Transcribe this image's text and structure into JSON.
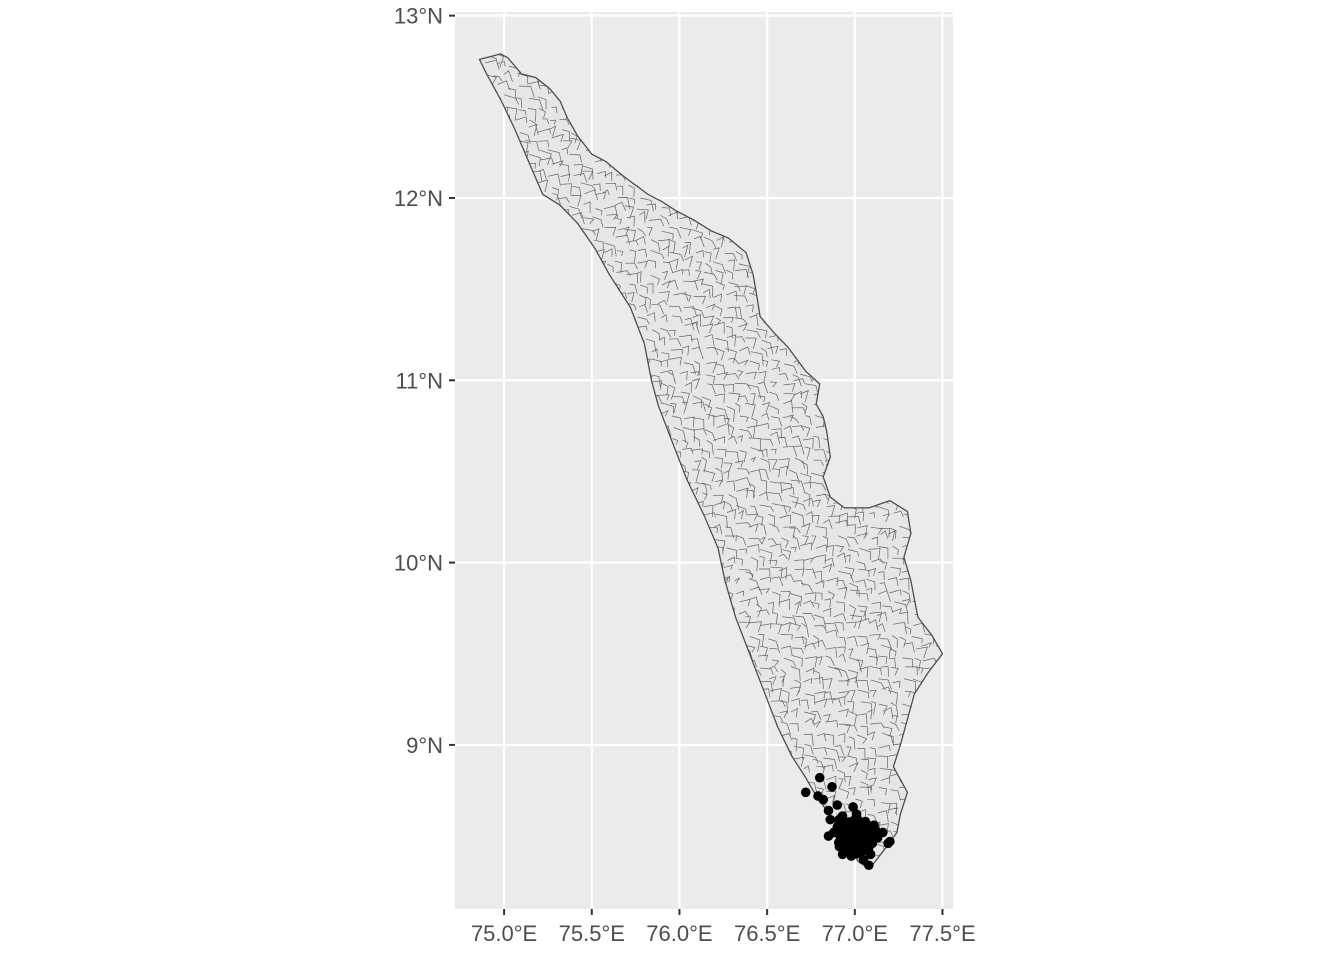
{
  "map": {
    "colors": {
      "panel_background": "#ebebeb",
      "grid": "#ffffff",
      "land_fill": "#e6e6e6",
      "border": "#4d4d4d",
      "points": "#000000",
      "axis_text": "#4d4d4d"
    },
    "grid": true,
    "lon_range": [
      74.72,
      77.56
    ],
    "lat_range": [
      8.1,
      13.02
    ],
    "x_ticks": [
      {
        "value": 75.0,
        "label": "75.0°E"
      },
      {
        "value": 75.5,
        "label": "75.5°E"
      },
      {
        "value": 76.0,
        "label": "76.0°E"
      },
      {
        "value": 76.5,
        "label": "76.5°E"
      },
      {
        "value": 77.0,
        "label": "77.0°E"
      },
      {
        "value": 77.5,
        "label": "77.5°E"
      }
    ],
    "y_ticks": [
      {
        "value": 9,
        "label": "9°N"
      },
      {
        "value": 10,
        "label": "10°N"
      },
      {
        "value": 11,
        "label": "11°N"
      },
      {
        "value": 12,
        "label": "12°N"
      },
      {
        "value": 13,
        "label": "13°N"
      }
    ],
    "outline": [
      [
        74.86,
        12.76
      ],
      [
        74.98,
        12.79
      ],
      [
        75.02,
        12.77
      ],
      [
        75.1,
        12.68
      ],
      [
        75.18,
        12.66
      ],
      [
        75.26,
        12.6
      ],
      [
        75.32,
        12.53
      ],
      [
        75.36,
        12.44
      ],
      [
        75.42,
        12.34
      ],
      [
        75.5,
        12.24
      ],
      [
        75.58,
        12.2
      ],
      [
        75.68,
        12.12
      ],
      [
        75.82,
        12.02
      ],
      [
        75.9,
        11.98
      ],
      [
        75.98,
        11.93
      ],
      [
        76.08,
        11.88
      ],
      [
        76.18,
        11.82
      ],
      [
        76.28,
        11.78
      ],
      [
        76.38,
        11.7
      ],
      [
        76.42,
        11.58
      ],
      [
        76.44,
        11.47
      ],
      [
        76.46,
        11.35
      ],
      [
        76.54,
        11.26
      ],
      [
        76.62,
        11.18
      ],
      [
        76.72,
        11.05
      ],
      [
        76.8,
        10.98
      ],
      [
        76.78,
        10.87
      ],
      [
        76.82,
        10.8
      ],
      [
        76.84,
        10.72
      ],
      [
        76.86,
        10.58
      ],
      [
        76.82,
        10.47
      ],
      [
        76.86,
        10.36
      ],
      [
        76.94,
        10.3
      ],
      [
        77.08,
        10.3
      ],
      [
        77.2,
        10.34
      ],
      [
        77.3,
        10.28
      ],
      [
        77.32,
        10.16
      ],
      [
        77.28,
        10.03
      ],
      [
        77.32,
        9.9
      ],
      [
        77.36,
        9.7
      ],
      [
        77.44,
        9.6
      ],
      [
        77.5,
        9.5
      ],
      [
        77.42,
        9.4
      ],
      [
        77.34,
        9.28
      ],
      [
        77.3,
        9.14
      ],
      [
        77.26,
        9.0
      ],
      [
        77.22,
        8.88
      ],
      [
        77.3,
        8.74
      ],
      [
        77.26,
        8.62
      ],
      [
        77.24,
        8.52
      ],
      [
        77.18,
        8.44
      ],
      [
        77.1,
        8.34
      ],
      [
        77.08,
        8.32
      ],
      [
        77.02,
        8.36
      ],
      [
        76.96,
        8.45
      ],
      [
        76.9,
        8.55
      ],
      [
        76.84,
        8.64
      ],
      [
        76.78,
        8.72
      ],
      [
        76.72,
        8.82
      ],
      [
        76.64,
        8.94
      ],
      [
        76.56,
        9.1
      ],
      [
        76.48,
        9.3
      ],
      [
        76.4,
        9.5
      ],
      [
        76.32,
        9.7
      ],
      [
        76.26,
        9.9
      ],
      [
        76.22,
        10.08
      ],
      [
        76.14,
        10.26
      ],
      [
        76.04,
        10.46
      ],
      [
        75.96,
        10.66
      ],
      [
        75.88,
        10.86
      ],
      [
        75.84,
        11.0
      ],
      [
        75.8,
        11.2
      ],
      [
        75.72,
        11.4
      ],
      [
        75.6,
        11.58
      ],
      [
        75.52,
        11.72
      ],
      [
        75.42,
        11.86
      ],
      [
        75.32,
        11.96
      ],
      [
        75.22,
        12.02
      ],
      [
        75.14,
        12.2
      ],
      [
        75.06,
        12.38
      ],
      [
        74.98,
        12.54
      ],
      [
        74.9,
        12.68
      ]
    ],
    "points": [
      [
        76.72,
        8.74
      ],
      [
        76.79,
        8.72
      ],
      [
        76.8,
        8.82
      ],
      [
        76.82,
        8.7
      ],
      [
        76.85,
        8.64
      ],
      [
        76.87,
        8.77
      ],
      [
        76.9,
        8.67
      ],
      [
        76.93,
        8.61
      ],
      [
        76.99,
        8.66
      ],
      [
        77.11,
        8.56
      ],
      [
        77.16,
        8.52
      ],
      [
        77.19,
        8.46
      ],
      [
        77.2,
        8.47
      ],
      [
        77.13,
        8.49
      ],
      [
        77.08,
        8.34
      ],
      [
        77.05,
        8.37
      ],
      [
        76.97,
        8.43
      ],
      [
        76.95,
        8.47
      ],
      [
        76.92,
        8.5
      ],
      [
        76.9,
        8.55
      ],
      [
        76.86,
        8.59
      ],
      [
        77.0,
        8.46
      ],
      [
        77.02,
        8.5
      ],
      [
        77.04,
        8.55
      ],
      [
        77.06,
        8.58
      ],
      [
        76.96,
        8.53
      ],
      [
        76.99,
        8.58
      ],
      [
        77.07,
        8.5
      ],
      [
        77.1,
        8.46
      ],
      [
        76.88,
        8.52
      ],
      [
        76.93,
        8.4
      ],
      [
        76.98,
        8.39
      ],
      [
        77.03,
        8.42
      ],
      [
        77.06,
        8.45
      ],
      [
        76.97,
        8.55
      ],
      [
        77.01,
        8.62
      ],
      [
        76.91,
        8.59
      ],
      [
        76.85,
        8.5
      ],
      [
        77.12,
        8.53
      ],
      [
        77.09,
        8.4
      ]
    ],
    "cluster": {
      "center": [
        77.0,
        8.5
      ],
      "count": 160,
      "spread_lon": 0.11,
      "spread_lat": 0.1
    }
  }
}
